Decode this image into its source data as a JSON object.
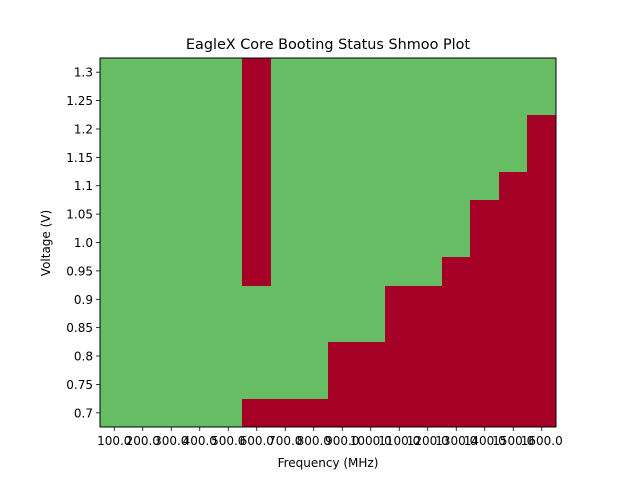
{
  "chart_data": {
    "type": "heatmap",
    "title": "EagleX Core Booting Status Shmoo Plot",
    "xlabel": "Frequency (MHz)",
    "ylabel": "Voltage (V)",
    "x_categories": [
      "100.0",
      "200.0",
      "300.0",
      "400.0",
      "500.0",
      "600.0",
      "700.0",
      "800.0",
      "900.0",
      "1000.0",
      "1100.0",
      "1200.0",
      "1300.0",
      "1400.0",
      "1500.0",
      "1600.0"
    ],
    "x_tick_labels": [
      "100.0",
      "200.0",
      "300.0",
      "400.0",
      "500.0",
      "600.0",
      "700.0",
      "800.0",
      "900.0",
      "1000.0",
      "1100.0",
      "1200.0",
      "1300.0",
      "1400.0",
      "1500.0",
      "1600.0"
    ],
    "y_categories": [
      "0.7",
      "0.75",
      "0.8",
      "0.85",
      "0.9",
      "0.95",
      "1.0",
      "1.05",
      "1.1",
      "1.15",
      "1.2",
      "1.25",
      "1.3"
    ],
    "y_tick_labels": [
      "0.7",
      "0.75",
      "0.8",
      "0.85",
      "0.9",
      "0.95",
      "1.0",
      "1.05",
      "1.1",
      "1.15",
      "1.2",
      "1.25",
      "1.3"
    ],
    "status_matrix_rows_low_to_high_voltage": [
      [
        1,
        1,
        1,
        1,
        1,
        0,
        0,
        0,
        0,
        0,
        0,
        0,
        0,
        0,
        0,
        0
      ],
      [
        1,
        1,
        1,
        1,
        1,
        1,
        1,
        1,
        0,
        0,
        0,
        0,
        0,
        0,
        0,
        0
      ],
      [
        1,
        1,
        1,
        1,
        1,
        1,
        1,
        1,
        0,
        0,
        0,
        0,
        0,
        0,
        0,
        0
      ],
      [
        1,
        1,
        1,
        1,
        1,
        1,
        1,
        1,
        1,
        1,
        0,
        0,
        0,
        0,
        0,
        0
      ],
      [
        1,
        1,
        1,
        1,
        1,
        1,
        1,
        1,
        1,
        1,
        0,
        0,
        0,
        0,
        0,
        0
      ],
      [
        1,
        1,
        1,
        1,
        1,
        0,
        1,
        1,
        1,
        1,
        1,
        1,
        0,
        0,
        0,
        0
      ],
      [
        1,
        1,
        1,
        1,
        1,
        0,
        1,
        1,
        1,
        1,
        1,
        1,
        1,
        0,
        0,
        0
      ],
      [
        1,
        1,
        1,
        1,
        1,
        0,
        1,
        1,
        1,
        1,
        1,
        1,
        1,
        0,
        0,
        0
      ],
      [
        1,
        1,
        1,
        1,
        1,
        0,
        1,
        1,
        1,
        1,
        1,
        1,
        1,
        1,
        0,
        0
      ],
      [
        1,
        1,
        1,
        1,
        1,
        0,
        1,
        1,
        1,
        1,
        1,
        1,
        1,
        1,
        1,
        0
      ],
      [
        1,
        1,
        1,
        1,
        1,
        0,
        1,
        1,
        1,
        1,
        1,
        1,
        1,
        1,
        1,
        0
      ],
      [
        1,
        1,
        1,
        1,
        1,
        0,
        1,
        1,
        1,
        1,
        1,
        1,
        1,
        1,
        1,
        1
      ],
      [
        1,
        1,
        1,
        1,
        1,
        0,
        1,
        1,
        1,
        1,
        1,
        1,
        1,
        1,
        1,
        1
      ]
    ],
    "status_colors": {
      "1": "#66bd63",
      "0": "#a50026"
    },
    "grid": false,
    "legend": "none"
  }
}
